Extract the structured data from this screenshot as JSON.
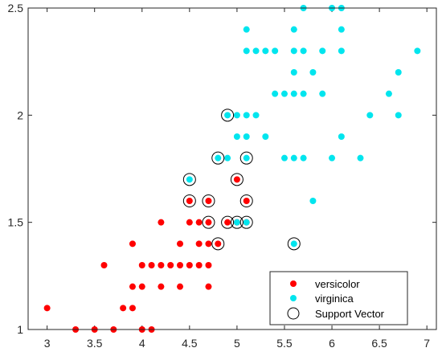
{
  "chart_data": {
    "type": "scatter",
    "xlim": [
      2.8,
      7.1
    ],
    "ylim": [
      1.0,
      2.5
    ],
    "xticks": [
      3,
      3.5,
      4,
      4.5,
      5,
      5.5,
      6,
      6.5,
      7
    ],
    "yticks": [
      1,
      1.5,
      2,
      2.5
    ],
    "xtick_labels": [
      "3",
      "3.5",
      "4",
      "4.5",
      "5",
      "5.5",
      "6",
      "6.5",
      "7"
    ],
    "ytick_labels": [
      "1",
      "1.5",
      "2",
      "2.5"
    ],
    "grid": false,
    "legend_position": "bottom-right",
    "series": [
      {
        "name": "versicolor",
        "color": "#ff0000",
        "marker": "filled-circle",
        "points": [
          [
            3.0,
            1.1
          ],
          [
            3.3,
            1.0
          ],
          [
            3.5,
            1.0
          ],
          [
            3.7,
            1.0
          ],
          [
            4.0,
            1.0
          ],
          [
            4.1,
            1.0
          ],
          [
            3.8,
            1.1
          ],
          [
            3.9,
            1.1
          ],
          [
            3.9,
            1.2
          ],
          [
            4.0,
            1.2
          ],
          [
            4.2,
            1.2
          ],
          [
            4.4,
            1.2
          ],
          [
            4.7,
            1.2
          ],
          [
            3.6,
            1.3
          ],
          [
            4.0,
            1.3
          ],
          [
            4.1,
            1.3
          ],
          [
            4.2,
            1.3
          ],
          [
            4.3,
            1.3
          ],
          [
            4.4,
            1.3
          ],
          [
            4.5,
            1.3
          ],
          [
            4.6,
            1.3
          ],
          [
            4.7,
            1.3
          ],
          [
            3.9,
            1.4
          ],
          [
            4.4,
            1.4
          ],
          [
            4.6,
            1.4
          ],
          [
            4.7,
            1.4
          ],
          [
            4.8,
            1.4
          ],
          [
            4.2,
            1.5
          ],
          [
            4.5,
            1.5
          ],
          [
            4.6,
            1.5
          ],
          [
            4.7,
            1.5
          ],
          [
            4.9,
            1.5
          ],
          [
            5.0,
            1.5
          ],
          [
            5.1,
            1.5
          ],
          [
            4.5,
            1.6
          ],
          [
            4.7,
            1.6
          ],
          [
            5.1,
            1.6
          ],
          [
            5.0,
            1.7
          ]
        ]
      },
      {
        "name": "virginica",
        "color": "#00e5ee",
        "marker": "filled-circle",
        "points": [
          [
            4.5,
            1.7
          ],
          [
            4.9,
            1.8
          ],
          [
            5.1,
            1.8
          ],
          [
            5.5,
            1.8
          ],
          [
            5.6,
            1.8
          ],
          [
            5.7,
            1.8
          ],
          [
            6.0,
            1.8
          ],
          [
            6.3,
            1.8
          ],
          [
            4.8,
            1.8
          ],
          [
            5.8,
            1.6
          ],
          [
            5.6,
            1.4
          ],
          [
            5.0,
            1.5
          ],
          [
            5.1,
            1.5
          ],
          [
            5.0,
            1.9
          ],
          [
            5.1,
            1.9
          ],
          [
            5.3,
            1.9
          ],
          [
            6.1,
            1.9
          ],
          [
            4.9,
            2.0
          ],
          [
            5.0,
            2.0
          ],
          [
            5.1,
            2.0
          ],
          [
            5.2,
            2.0
          ],
          [
            6.4,
            2.0
          ],
          [
            6.7,
            2.0
          ],
          [
            5.6,
            2.1
          ],
          [
            5.4,
            2.1
          ],
          [
            5.5,
            2.1
          ],
          [
            5.7,
            2.1
          ],
          [
            5.9,
            2.1
          ],
          [
            6.6,
            2.1
          ],
          [
            5.6,
            2.2
          ],
          [
            5.8,
            2.2
          ],
          [
            6.7,
            2.2
          ],
          [
            5.1,
            2.3
          ],
          [
            5.2,
            2.3
          ],
          [
            5.3,
            2.3
          ],
          [
            5.4,
            2.3
          ],
          [
            5.6,
            2.3
          ],
          [
            5.7,
            2.3
          ],
          [
            5.9,
            2.3
          ],
          [
            6.1,
            2.3
          ],
          [
            6.9,
            2.3
          ],
          [
            5.6,
            2.4
          ],
          [
            5.1,
            2.4
          ],
          [
            6.1,
            2.4
          ],
          [
            5.7,
            2.5
          ],
          [
            6.0,
            2.5
          ],
          [
            6.1,
            2.5
          ]
        ]
      },
      {
        "name": "Support Vector",
        "color": "#000000",
        "marker": "open-circle",
        "points": [
          [
            4.5,
            1.7
          ],
          [
            4.5,
            1.6
          ],
          [
            4.7,
            1.6
          ],
          [
            4.8,
            1.8
          ],
          [
            5.1,
            1.8
          ],
          [
            4.9,
            2.0
          ],
          [
            5.0,
            1.7
          ],
          [
            5.1,
            1.6
          ],
          [
            4.7,
            1.5
          ],
          [
            4.9,
            1.5
          ],
          [
            5.0,
            1.5
          ],
          [
            5.1,
            1.5
          ],
          [
            4.8,
            1.4
          ],
          [
            5.6,
            1.4
          ]
        ]
      }
    ]
  }
}
